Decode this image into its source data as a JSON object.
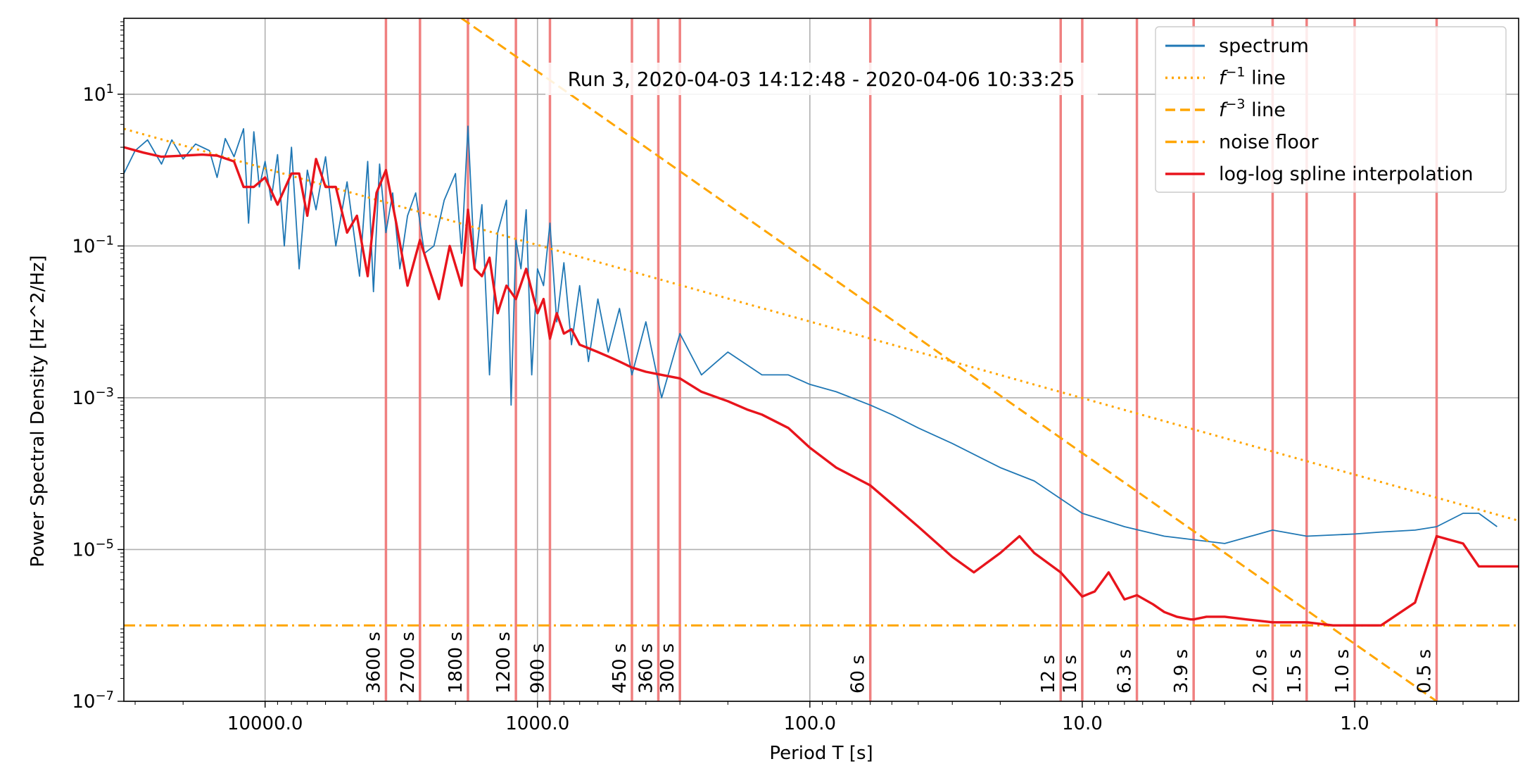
{
  "chart_data": {
    "type": "line",
    "title": "Run 3, 2020-04-03 14:12:48 - 2020-04-06 10:33:25",
    "xlabel": "Period T [s]",
    "ylabel": "Power Spectral Density [Hz^2/Hz]",
    "x_scale": "log",
    "y_scale": "log",
    "x_inverted": true,
    "xlim": [
      33000,
      0.25
    ],
    "ylim": [
      1e-07,
      100
    ],
    "grid": true,
    "legend_position": "top-right",
    "x_ticks": [
      {
        "value": 10000,
        "label": "10000.0"
      },
      {
        "value": 1000,
        "label": "1000.0"
      },
      {
        "value": 100,
        "label": "100.0"
      },
      {
        "value": 10,
        "label": "10.0"
      },
      {
        "value": 1,
        "label": "1.0"
      }
    ],
    "y_ticks": [
      {
        "value": 1e-07,
        "base": "10",
        "exp": "−7"
      },
      {
        "value": 1e-05,
        "base": "10",
        "exp": "−5"
      },
      {
        "value": 0.001,
        "base": "10",
        "exp": "−3"
      },
      {
        "value": 0.1,
        "base": "10",
        "exp": "−1"
      },
      {
        "value": 10,
        "base": "10",
        "exp": "1"
      }
    ],
    "series": [
      {
        "name": "spectrum",
        "style": "solid-thin",
        "color": "#1f77b4",
        "x": [
          33000,
          30000,
          27000,
          24000,
          22000,
          20000,
          18000,
          16000,
          15000,
          14000,
          13000,
          12000,
          11500,
          11000,
          10500,
          10000,
          9500,
          9000,
          8500,
          8000,
          7500,
          7000,
          6500,
          6000,
          5500,
          5000,
          4500,
          4200,
          4000,
          3800,
          3600,
          3400,
          3200,
          3000,
          2800,
          2600,
          2400,
          2200,
          2000,
          1900,
          1800,
          1700,
          1600,
          1500,
          1400,
          1300,
          1250,
          1200,
          1150,
          1100,
          1050,
          1000,
          950,
          900,
          850,
          800,
          750,
          700,
          650,
          600,
          550,
          500,
          450,
          400,
          350,
          300,
          250,
          200,
          150,
          120,
          100,
          80,
          60,
          50,
          40,
          30,
          20,
          15,
          10,
          7,
          5,
          3,
          2,
          1.5,
          1,
          0.8,
          0.6,
          0.5,
          0.4,
          0.35,
          0.3
        ],
        "y": [
          0.9,
          1.8,
          2.5,
          1.2,
          2.5,
          1.4,
          2.2,
          1.8,
          0.8,
          2.6,
          1.5,
          3.5,
          0.2,
          3.2,
          0.6,
          1.3,
          0.4,
          1.6,
          0.1,
          2.0,
          0.05,
          1.0,
          0.3,
          1.5,
          0.1,
          0.7,
          0.04,
          1.3,
          0.025,
          1.2,
          0.15,
          0.5,
          0.05,
          0.25,
          0.5,
          0.08,
          0.1,
          0.4,
          0.9,
          0.08,
          3.8,
          0.05,
          0.35,
          0.002,
          0.15,
          0.4,
          0.0008,
          0.12,
          0.05,
          0.3,
          0.002,
          0.05,
          0.03,
          0.2,
          0.01,
          0.06,
          0.005,
          0.03,
          0.003,
          0.02,
          0.004,
          0.015,
          0.002,
          0.01,
          0.001,
          0.007,
          0.002,
          0.004,
          0.002,
          0.002,
          0.0015,
          0.0012,
          0.0008,
          0.0006,
          0.0004,
          0.00025,
          0.00012,
          8e-05,
          3e-05,
          2e-05,
          1.5e-05,
          1.2e-05,
          1.8e-05,
          1.5e-05,
          1.6e-05,
          1.7e-05,
          1.8e-05,
          2e-05,
          3e-05,
          3e-05,
          2e-05
        ]
      },
      {
        "name": "f^{-1} line",
        "style": "dotted",
        "color": "#ffa500",
        "x": [
          33000,
          0.25
        ],
        "y": [
          3.5,
          2.4e-05
        ]
      },
      {
        "name": "f^{-3} line",
        "style": "dashed",
        "color": "#ffa500",
        "x": [
          1900,
          0.5
        ],
        "y": [
          100,
          1e-07
        ]
      },
      {
        "name": "noise floor",
        "style": "dashdot",
        "color": "#ffa500",
        "x": [
          33000,
          0.25
        ],
        "y": [
          1e-06,
          1e-06
        ]
      },
      {
        "name": "log-log spline interpolation",
        "style": "solid-thick",
        "color": "#e8141c",
        "x": [
          33000,
          28000,
          24000,
          20000,
          17000,
          15000,
          13000,
          12000,
          11000,
          10000,
          9000,
          8000,
          7500,
          7000,
          6500,
          6000,
          5500,
          5000,
          4600,
          4200,
          3900,
          3600,
          3300,
          3000,
          2700,
          2500,
          2300,
          2100,
          1900,
          1800,
          1700,
          1600,
          1500,
          1400,
          1300,
          1200,
          1100,
          1000,
          950,
          900,
          850,
          800,
          750,
          700,
          650,
          600,
          550,
          500,
          450,
          400,
          350,
          300,
          250,
          200,
          170,
          150,
          120,
          100,
          80,
          60,
          50,
          40,
          30,
          25,
          20,
          17,
          15,
          12,
          10,
          9,
          8,
          7,
          6.3,
          5.5,
          5,
          4.5,
          4,
          3.9,
          3.5,
          3,
          2.5,
          2,
          1.5,
          1.2,
          1,
          0.8,
          0.6,
          0.5,
          0.4,
          0.35,
          0.3,
          0.27,
          0.25
        ],
        "y": [
          2.0,
          1.7,
          1.5,
          1.55,
          1.6,
          1.55,
          1.3,
          0.6,
          0.6,
          0.8,
          0.35,
          0.9,
          0.9,
          0.25,
          1.4,
          0.6,
          0.6,
          0.15,
          0.25,
          0.04,
          0.5,
          1.0,
          0.2,
          0.03,
          0.12,
          0.05,
          0.02,
          0.1,
          0.03,
          0.3,
          0.05,
          0.04,
          0.07,
          0.013,
          0.03,
          0.02,
          0.05,
          0.013,
          0.02,
          0.006,
          0.013,
          0.007,
          0.008,
          0.005,
          0.0045,
          0.004,
          0.0035,
          0.003,
          0.0025,
          0.0022,
          0.002,
          0.0018,
          0.0012,
          0.0009,
          0.0007,
          0.0006,
          0.0004,
          0.00022,
          0.00012,
          7e-05,
          4e-05,
          2e-05,
          8e-06,
          5e-06,
          9e-06,
          1.5e-05,
          9e-06,
          5e-06,
          2.4e-06,
          2.8e-06,
          5e-06,
          2.2e-06,
          2.5e-06,
          1.9e-06,
          1.5e-06,
          1.3e-06,
          1.2e-06,
          1.2e-06,
          1.3e-06,
          1.3e-06,
          1.2e-06,
          1.1e-06,
          1.1e-06,
          1e-06,
          1e-06,
          1e-06,
          2e-06,
          1.5e-05,
          1.2e-05,
          6e-06,
          6e-06,
          6e-06,
          6e-06
        ]
      }
    ],
    "vertical_lines": [
      {
        "period": 3600,
        "label": "3600 s"
      },
      {
        "period": 2700,
        "label": "2700 s"
      },
      {
        "period": 1800,
        "label": "1800 s"
      },
      {
        "period": 1200,
        "label": "1200 s"
      },
      {
        "period": 900,
        "label": "900 s"
      },
      {
        "period": 450,
        "label": "450 s"
      },
      {
        "period": 360,
        "label": "360 s"
      },
      {
        "period": 300,
        "label": "300 s"
      },
      {
        "period": 60,
        "label": "60 s"
      },
      {
        "period": 12,
        "label": "12 s"
      },
      {
        "period": 10,
        "label": "10 s"
      },
      {
        "period": 6.3,
        "label": "6.3 s"
      },
      {
        "period": 3.9,
        "label": "3.9 s"
      },
      {
        "period": 2.0,
        "label": "2.0 s"
      },
      {
        "period": 1.5,
        "label": "1.5 s"
      },
      {
        "period": 1.0,
        "label": "1.0 s"
      },
      {
        "period": 0.5,
        "label": "0.5 s"
      }
    ],
    "vertical_line_color": "#f08080"
  }
}
